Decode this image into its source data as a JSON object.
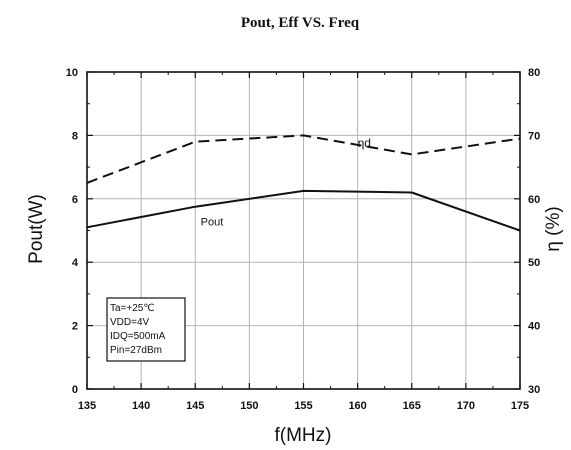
{
  "chart_data": {
    "type": "line",
    "title": "Pout, Eff VS. Freq",
    "xlabel": "f(MHz)",
    "ylabel": "Pout(W)",
    "y2label": "η (%)",
    "xlim": [
      135,
      175
    ],
    "ylim": [
      0,
      10
    ],
    "y2lim": [
      30,
      80
    ],
    "xticks": [
      135,
      140,
      145,
      150,
      155,
      160,
      165,
      170,
      175
    ],
    "yticks": [
      0,
      2,
      4,
      6,
      8,
      10
    ],
    "y2ticks": [
      30,
      40,
      50,
      60,
      70,
      80
    ],
    "grid": true,
    "series": [
      {
        "name": "Pout",
        "axis": "left",
        "style": "solid",
        "x": [
          135,
          145,
          155,
          165,
          175
        ],
        "values": [
          5.1,
          5.75,
          6.25,
          6.2,
          5.0
        ]
      },
      {
        "name": "ηd",
        "axis": "right",
        "style": "dashed",
        "x": [
          135,
          145,
          155,
          165,
          175
        ],
        "values": [
          62.5,
          69.0,
          70.0,
          67.0,
          69.5
        ]
      }
    ],
    "annotation": {
      "lines": [
        "Ta=+25℃",
        "VDD=4V",
        "IDQ=500mA",
        "Pin=27dBm"
      ]
    }
  }
}
